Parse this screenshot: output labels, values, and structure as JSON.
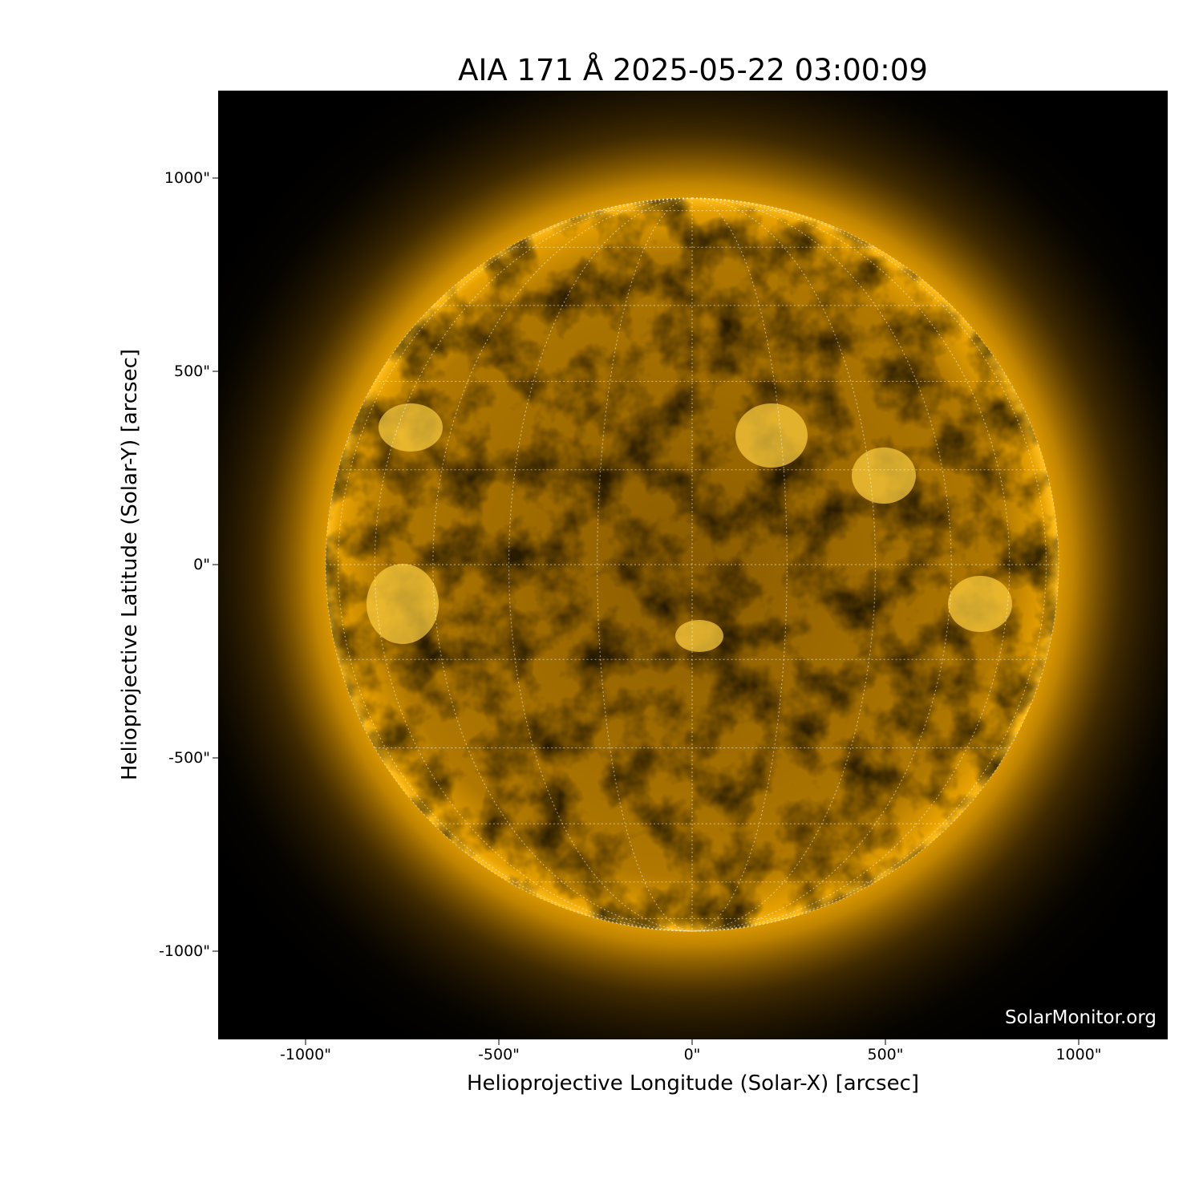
{
  "title": "AIA 171 Å 2025-05-22 03:00:09",
  "xlabel": "Helioprojective Longitude (Solar-X) [arcsec]",
  "ylabel": "Helioprojective Latitude (Solar-Y) [arcsec]",
  "x_ticks": [
    "-1000\"",
    "-500\"",
    "0\"",
    "500\"",
    "1000\""
  ],
  "y_ticks": [
    "1000\"",
    "500\"",
    "0\"",
    "-500\"",
    "-1000\""
  ],
  "tick_values": [
    -1000,
    -500,
    0,
    500,
    1000
  ],
  "axis_range_arcsec": [
    -1230,
    1230
  ],
  "solar_radius_arcsec": 948,
  "grid_spacing_deg": 15,
  "watermark": "SolarMonitor.org",
  "colors": {
    "background": "#000000",
    "disk": "#c88a00",
    "corona": "#ffb000",
    "grid": "#ffffff"
  }
}
